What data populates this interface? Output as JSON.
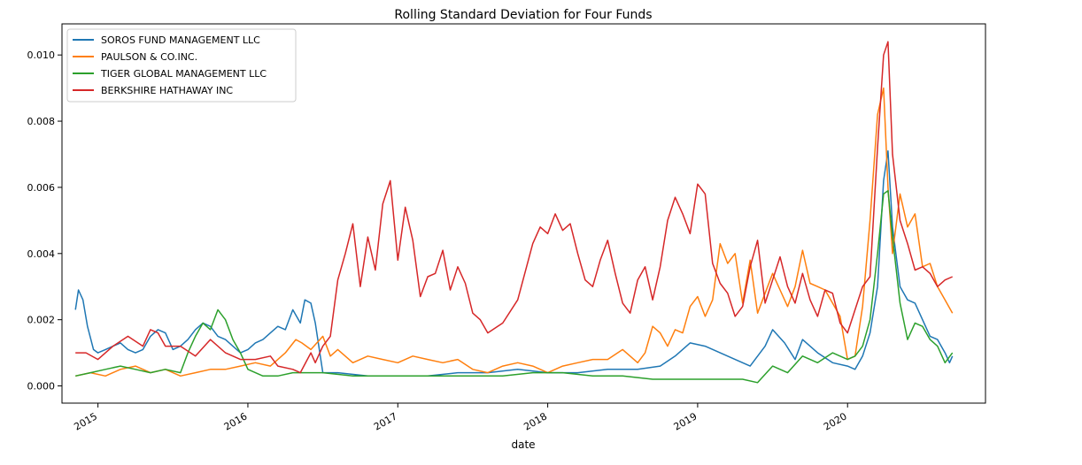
{
  "chart_data": {
    "type": "line",
    "title": "Rolling Standard Deviation for Four Funds",
    "xlabel": "date",
    "ylabel": "",
    "xlim": [
      2014.76,
      2020.92
    ],
    "ylim": [
      -0.00052,
      0.01094
    ],
    "x_ticks": [
      {
        "value": 2015,
        "label": "2015"
      },
      {
        "value": 2016,
        "label": "2016"
      },
      {
        "value": 2017,
        "label": "2017"
      },
      {
        "value": 2018,
        "label": "2018"
      },
      {
        "value": 2019,
        "label": "2019"
      },
      {
        "value": 2020,
        "label": "2020"
      }
    ],
    "y_ticks": [
      {
        "value": 0.0,
        "label": "0.000"
      },
      {
        "value": 0.002,
        "label": "0.002"
      },
      {
        "value": 0.004,
        "label": "0.004"
      },
      {
        "value": 0.006,
        "label": "0.006"
      },
      {
        "value": 0.008,
        "label": "0.008"
      },
      {
        "value": 0.01,
        "label": "0.010"
      }
    ],
    "grid": false,
    "legend_position": "top-left",
    "series": [
      {
        "name": "SOROS FUND MANAGEMENT LLC",
        "color": "#1f77b4",
        "x": [
          2014.85,
          2014.87,
          2014.9,
          2014.93,
          2014.97,
          2015.0,
          2015.05,
          2015.1,
          2015.15,
          2015.2,
          2015.25,
          2015.3,
          2015.35,
          2015.4,
          2015.45,
          2015.5,
          2015.55,
          2015.6,
          2015.65,
          2015.7,
          2015.75,
          2015.8,
          2015.85,
          2015.9,
          2015.95,
          2016.0,
          2016.05,
          2016.1,
          2016.15,
          2016.2,
          2016.25,
          2016.3,
          2016.35,
          2016.38,
          2016.42,
          2016.45,
          2016.5,
          2016.6,
          2016.8,
          2017.0,
          2017.2,
          2017.4,
          2017.6,
          2017.8,
          2018.0,
          2018.2,
          2018.4,
          2018.6,
          2018.75,
          2018.85,
          2018.95,
          2019.05,
          2019.15,
          2019.25,
          2019.35,
          2019.45,
          2019.5,
          2019.58,
          2019.65,
          2019.7,
          2019.8,
          2019.9,
          2020.0,
          2020.05,
          2020.1,
          2020.15,
          2020.2,
          2020.24,
          2020.27,
          2020.3,
          2020.35,
          2020.4,
          2020.45,
          2020.5,
          2020.55,
          2020.6,
          2020.65,
          2020.68,
          2020.7
        ],
        "y": [
          0.0023,
          0.0029,
          0.0026,
          0.0018,
          0.0011,
          0.001,
          0.0011,
          0.0012,
          0.0013,
          0.0011,
          0.001,
          0.0011,
          0.0015,
          0.0017,
          0.0016,
          0.0011,
          0.0012,
          0.0014,
          0.0017,
          0.0019,
          0.0018,
          0.0015,
          0.0014,
          0.0012,
          0.001,
          0.0011,
          0.0013,
          0.0014,
          0.0016,
          0.0018,
          0.0017,
          0.0023,
          0.0019,
          0.0026,
          0.0025,
          0.0019,
          0.0004,
          0.0004,
          0.0003,
          0.0003,
          0.0003,
          0.0004,
          0.0004,
          0.0005,
          0.0004,
          0.0004,
          0.0005,
          0.0005,
          0.0006,
          0.0009,
          0.0013,
          0.0012,
          0.001,
          0.0008,
          0.0006,
          0.0012,
          0.0017,
          0.0013,
          0.0008,
          0.0014,
          0.001,
          0.0007,
          0.0006,
          0.0005,
          0.0009,
          0.0016,
          0.003,
          0.0062,
          0.0071,
          0.0048,
          0.003,
          0.0026,
          0.0025,
          0.002,
          0.0015,
          0.0014,
          0.001,
          0.0007,
          0.0009
        ]
      },
      {
        "name": "PAULSON & CO.INC.",
        "color": "#ff7f0e",
        "x": [
          2014.85,
          2014.95,
          2015.05,
          2015.15,
          2015.25,
          2015.35,
          2015.45,
          2015.55,
          2015.65,
          2015.75,
          2015.85,
          2015.95,
          2016.05,
          2016.15,
          2016.25,
          2016.32,
          2016.36,
          2016.42,
          2016.5,
          2016.55,
          2016.6,
          2016.7,
          2016.8,
          2016.9,
          2017.0,
          2017.1,
          2017.2,
          2017.3,
          2017.4,
          2017.5,
          2017.6,
          2017.7,
          2017.8,
          2017.9,
          2018.0,
          2018.1,
          2018.2,
          2018.3,
          2018.4,
          2018.5,
          2018.6,
          2018.65,
          2018.7,
          2018.75,
          2018.8,
          2018.85,
          2018.9,
          2018.95,
          2019.0,
          2019.05,
          2019.1,
          2019.15,
          2019.2,
          2019.25,
          2019.3,
          2019.35,
          2019.4,
          2019.45,
          2019.5,
          2019.55,
          2019.6,
          2019.65,
          2019.7,
          2019.75,
          2019.8,
          2019.85,
          2019.9,
          2019.95,
          2020.0,
          2020.05,
          2020.1,
          2020.15,
          2020.2,
          2020.24,
          2020.27,
          2020.3,
          2020.35,
          2020.4,
          2020.45,
          2020.5,
          2020.55,
          2020.6,
          2020.65,
          2020.7
        ],
        "y": [
          0.0003,
          0.0004,
          0.0003,
          0.0005,
          0.0006,
          0.0004,
          0.0005,
          0.0003,
          0.0004,
          0.0005,
          0.0005,
          0.0006,
          0.0007,
          0.0006,
          0.001,
          0.0014,
          0.0013,
          0.0011,
          0.0015,
          0.0009,
          0.0011,
          0.0007,
          0.0009,
          0.0008,
          0.0007,
          0.0009,
          0.0008,
          0.0007,
          0.0008,
          0.0005,
          0.0004,
          0.0006,
          0.0007,
          0.0006,
          0.0004,
          0.0006,
          0.0007,
          0.0008,
          0.0008,
          0.0011,
          0.0007,
          0.001,
          0.0018,
          0.0016,
          0.0012,
          0.0017,
          0.0016,
          0.0024,
          0.0027,
          0.0021,
          0.0026,
          0.0043,
          0.0037,
          0.004,
          0.0025,
          0.0038,
          0.0022,
          0.0028,
          0.0034,
          0.0029,
          0.0024,
          0.003,
          0.0041,
          0.0031,
          0.003,
          0.0029,
          0.0025,
          0.0021,
          0.0008,
          0.0009,
          0.0024,
          0.005,
          0.0082,
          0.009,
          0.006,
          0.004,
          0.0058,
          0.0048,
          0.0052,
          0.0036,
          0.0037,
          0.003,
          0.0026,
          0.0022
        ]
      },
      {
        "name": "TIGER GLOBAL MANAGEMENT LLC",
        "color": "#2ca02c",
        "x": [
          2014.85,
          2014.95,
          2015.05,
          2015.15,
          2015.25,
          2015.35,
          2015.45,
          2015.55,
          2015.6,
          2015.65,
          2015.7,
          2015.75,
          2015.8,
          2015.85,
          2015.9,
          2015.95,
          2016.0,
          2016.1,
          2016.2,
          2016.3,
          2016.5,
          2016.7,
          2016.9,
          2017.1,
          2017.3,
          2017.5,
          2017.7,
          2017.9,
          2018.1,
          2018.3,
          2018.5,
          2018.7,
          2018.9,
          2019.1,
          2019.3,
          2019.4,
          2019.5,
          2019.6,
          2019.7,
          2019.8,
          2019.9,
          2020.0,
          2020.05,
          2020.1,
          2020.15,
          2020.2,
          2020.24,
          2020.27,
          2020.3,
          2020.35,
          2020.4,
          2020.45,
          2020.5,
          2020.55,
          2020.6,
          2020.65,
          2020.7
        ],
        "y": [
          0.0003,
          0.0004,
          0.0005,
          0.0006,
          0.0005,
          0.0004,
          0.0005,
          0.0004,
          0.001,
          0.0015,
          0.0019,
          0.0017,
          0.0023,
          0.002,
          0.0014,
          0.001,
          0.0005,
          0.0003,
          0.0003,
          0.0004,
          0.0004,
          0.0003,
          0.0003,
          0.0003,
          0.0003,
          0.0003,
          0.0003,
          0.0004,
          0.0004,
          0.0003,
          0.0003,
          0.0002,
          0.0002,
          0.0002,
          0.0002,
          0.0001,
          0.0006,
          0.0004,
          0.0009,
          0.0007,
          0.001,
          0.0008,
          0.0009,
          0.0012,
          0.002,
          0.004,
          0.0058,
          0.0059,
          0.0045,
          0.0025,
          0.0014,
          0.0019,
          0.0018,
          0.0014,
          0.0012,
          0.0007,
          0.001
        ]
      },
      {
        "name": "BERKSHIRE HATHAWAY INC",
        "color": "#d62728",
        "x": [
          2014.85,
          2014.92,
          2015.0,
          2015.1,
          2015.2,
          2015.3,
          2015.35,
          2015.4,
          2015.45,
          2015.55,
          2015.65,
          2015.75,
          2015.85,
          2015.95,
          2016.05,
          2016.15,
          2016.2,
          2016.3,
          2016.35,
          2016.42,
          2016.45,
          2016.5,
          2016.55,
          2016.6,
          2016.65,
          2016.7,
          2016.75,
          2016.8,
          2016.85,
          2016.9,
          2016.95,
          2017.0,
          2017.05,
          2017.1,
          2017.15,
          2017.2,
          2017.25,
          2017.3,
          2017.35,
          2017.4,
          2017.45,
          2017.5,
          2017.55,
          2017.6,
          2017.7,
          2017.8,
          2017.9,
          2017.95,
          2018.0,
          2018.05,
          2018.1,
          2018.15,
          2018.2,
          2018.25,
          2018.3,
          2018.35,
          2018.4,
          2018.45,
          2018.5,
          2018.55,
          2018.6,
          2018.65,
          2018.7,
          2018.75,
          2018.8,
          2018.85,
          2018.9,
          2018.95,
          2019.0,
          2019.05,
          2019.1,
          2019.15,
          2019.2,
          2019.25,
          2019.3,
          2019.35,
          2019.4,
          2019.45,
          2019.5,
          2019.55,
          2019.6,
          2019.65,
          2019.7,
          2019.75,
          2019.8,
          2019.85,
          2019.9,
          2019.95,
          2020.0,
          2020.05,
          2020.1,
          2020.15,
          2020.2,
          2020.24,
          2020.27,
          2020.3,
          2020.35,
          2020.4,
          2020.45,
          2020.5,
          2020.55,
          2020.6,
          2020.65,
          2020.7
        ],
        "y": [
          0.001,
          0.001,
          0.0008,
          0.0012,
          0.0015,
          0.0012,
          0.0017,
          0.0016,
          0.0012,
          0.0012,
          0.0009,
          0.0014,
          0.001,
          0.0008,
          0.0008,
          0.0009,
          0.0006,
          0.0005,
          0.0004,
          0.001,
          0.0007,
          0.0012,
          0.0015,
          0.0032,
          0.004,
          0.0049,
          0.003,
          0.0045,
          0.0035,
          0.0055,
          0.0062,
          0.0038,
          0.0054,
          0.0044,
          0.0027,
          0.0033,
          0.0034,
          0.0041,
          0.0029,
          0.0036,
          0.0031,
          0.0022,
          0.002,
          0.0016,
          0.0019,
          0.0026,
          0.0043,
          0.0048,
          0.0046,
          0.0052,
          0.0047,
          0.0049,
          0.004,
          0.0032,
          0.003,
          0.0038,
          0.0044,
          0.0034,
          0.0025,
          0.0022,
          0.0032,
          0.0036,
          0.0026,
          0.0036,
          0.005,
          0.0057,
          0.0052,
          0.0046,
          0.0061,
          0.0058,
          0.0037,
          0.0031,
          0.0028,
          0.0021,
          0.0024,
          0.0036,
          0.0044,
          0.0025,
          0.0032,
          0.0039,
          0.003,
          0.0025,
          0.0034,
          0.0026,
          0.0021,
          0.0029,
          0.0028,
          0.0019,
          0.0016,
          0.0023,
          0.003,
          0.0033,
          0.0072,
          0.01,
          0.0104,
          0.007,
          0.005,
          0.0043,
          0.0035,
          0.0036,
          0.0034,
          0.003,
          0.0032,
          0.0033
        ]
      }
    ]
  }
}
